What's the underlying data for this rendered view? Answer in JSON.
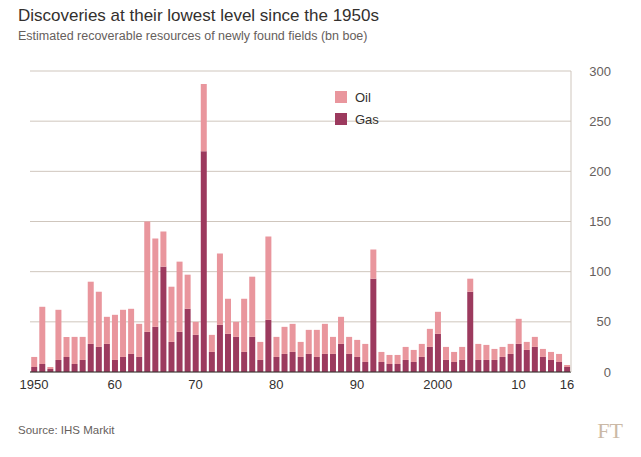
{
  "chart_data": {
    "type": "bar",
    "title": "Discoveries at their lowest level since the 1950s",
    "subtitle": "Estimated recoverable resources of newly found fields (bn boe)",
    "annotations": [
      "Source: IHS Markit",
      "FT"
    ],
    "categories": [
      "1950",
      null,
      null,
      null,
      null,
      null,
      null,
      null,
      null,
      null,
      "60",
      null,
      null,
      null,
      null,
      null,
      null,
      null,
      null,
      null,
      "70",
      null,
      null,
      null,
      null,
      null,
      null,
      null,
      null,
      null,
      "80",
      null,
      null,
      null,
      null,
      null,
      null,
      null,
      null,
      null,
      "90",
      null,
      null,
      null,
      null,
      null,
      null,
      null,
      null,
      null,
      "2000",
      null,
      null,
      null,
      null,
      null,
      null,
      null,
      null,
      null,
      "10",
      null,
      null,
      null,
      null,
      null,
      "16"
    ],
    "series": [
      {
        "name": "Oil",
        "color": "#e9969d",
        "values": [
          10,
          57,
          2,
          50,
          20,
          27,
          23,
          62,
          55,
          27,
          45,
          47,
          45,
          33,
          110,
          88,
          35,
          55,
          70,
          34,
          13,
          67,
          17,
          71,
          35,
          15,
          53,
          60,
          18,
          83,
          20,
          27,
          28,
          15,
          24,
          27,
          30,
          17,
          27,
          17,
          17,
          18,
          29,
          10,
          9,
          9,
          13,
          12,
          13,
          18,
          22,
          13,
          10,
          13,
          13,
          16,
          15,
          11,
          10,
          10,
          25,
          8,
          10,
          8,
          8,
          8,
          2
        ]
      },
      {
        "name": "Gas",
        "color": "#9c3a5e",
        "values": [
          5,
          8,
          3,
          12,
          15,
          8,
          12,
          28,
          25,
          28,
          12,
          15,
          18,
          15,
          40,
          45,
          105,
          30,
          40,
          63,
          37,
          220,
          20,
          47,
          38,
          35,
          20,
          35,
          12,
          52,
          15,
          18,
          20,
          15,
          18,
          15,
          18,
          18,
          28,
          18,
          15,
          10,
          93,
          10,
          8,
          8,
          12,
          10,
          15,
          25,
          38,
          12,
          10,
          12,
          80,
          12,
          12,
          12,
          15,
          18,
          28,
          22,
          25,
          15,
          12,
          10,
          5
        ]
      }
    ],
    "ylim": [
      0,
      300
    ],
    "yticks": [
      0,
      50,
      100,
      150,
      200,
      250,
      300
    ],
    "grid": true,
    "stacked": true,
    "legend": "top"
  }
}
